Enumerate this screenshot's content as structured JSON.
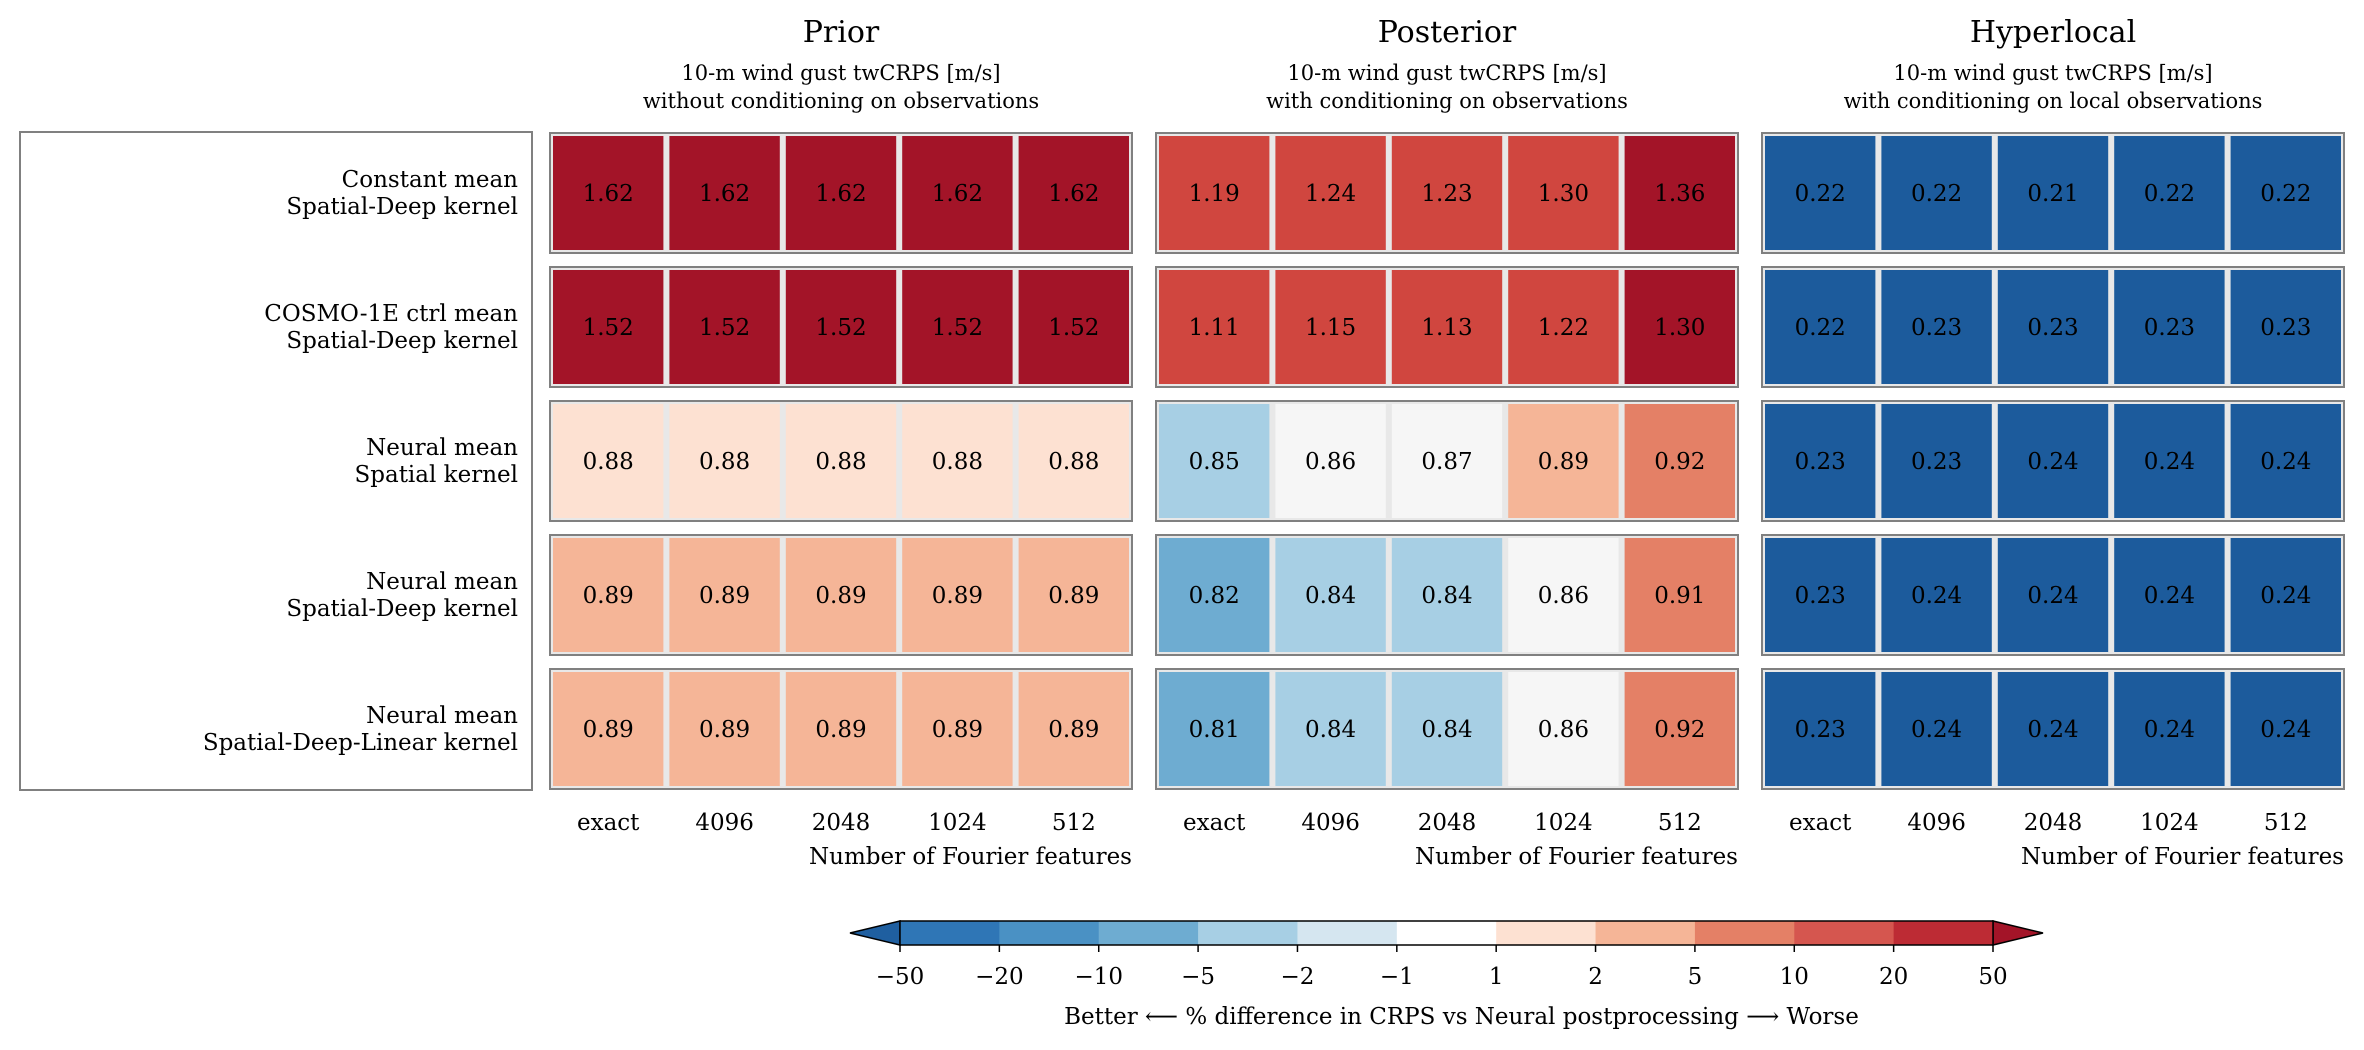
{
  "figure": {
    "xlabel": "Number of Fourier features",
    "row_labels": [
      [
        "Constant mean",
        "Spatial-Deep kernel"
      ],
      [
        "COSMO-1E ctrl mean",
        "Spatial-Deep kernel"
      ],
      [
        "Neural mean",
        "Spatial kernel"
      ],
      [
        "Neural mean",
        "Spatial-Deep kernel"
      ],
      [
        "Neural mean",
        "Spatial-Deep-Linear kernel"
      ]
    ],
    "colorbar": {
      "label": "Better ⟵ % difference in CRPS vs Neural postprocessing ⟶ Worse",
      "ticks": [
        "−50",
        "−20",
        "−10",
        "−5",
        "−2",
        "−1",
        "1",
        "2",
        "5",
        "10",
        "20",
        "50"
      ],
      "bins": [
        {
          "range": "-50 to -20",
          "color": "#2f76b6"
        },
        {
          "range": "-20 to -10",
          "color": "#4a91c4"
        },
        {
          "range": "-10 to -5",
          "color": "#6eacd1"
        },
        {
          "range": "-5 to -2",
          "color": "#a7cfe4"
        },
        {
          "range": "-2 to -1",
          "color": "#d5e6f0"
        },
        {
          "range": "-1 to 1",
          "color": "#ffffff"
        },
        {
          "range": "1 to 2",
          "color": "#fde1d2"
        },
        {
          "range": "2 to 5",
          "color": "#f5b597"
        },
        {
          "range": "5 to 10",
          "color": "#e48066"
        },
        {
          "range": "10 to 20",
          "color": "#d5564f"
        },
        {
          "range": "20 to 50",
          "color": "#bd2b34"
        }
      ],
      "extend_low_color": "#1f5fa0",
      "extend_high_color": "#a31428"
    }
  },
  "chart_data": [
    {
      "type": "heatmap",
      "title": "Prior",
      "subtitle": [
        "10-m wind gust twCRPS [m/s]",
        "without conditioning on observations"
      ],
      "xlabel": "Number of Fourier features",
      "categories": [
        "exact",
        "4096",
        "2048",
        "1024",
        "512"
      ],
      "values": [
        [
          "1.62",
          "1.62",
          "1.62",
          "1.62",
          "1.62"
        ],
        [
          "1.52",
          "1.52",
          "1.52",
          "1.52",
          "1.52"
        ],
        [
          "0.88",
          "0.88",
          "0.88",
          "0.88",
          "0.88"
        ],
        [
          "0.89",
          "0.89",
          "0.89",
          "0.89",
          "0.89"
        ],
        [
          "0.89",
          "0.89",
          "0.89",
          "0.89",
          "0.89"
        ]
      ],
      "colors": [
        [
          "#a31428",
          "#a31428",
          "#a31428",
          "#a31428",
          "#a31428"
        ],
        [
          "#a31428",
          "#a31428",
          "#a31428",
          "#a31428",
          "#a31428"
        ],
        [
          "#fde1d2",
          "#fde1d2",
          "#fde1d2",
          "#fde1d2",
          "#fde1d2"
        ],
        [
          "#f5b597",
          "#f5b597",
          "#f5b597",
          "#f5b597",
          "#f5b597"
        ],
        [
          "#f5b597",
          "#f5b597",
          "#f5b597",
          "#f5b597",
          "#f5b597"
        ]
      ]
    },
    {
      "type": "heatmap",
      "title": "Posterior",
      "subtitle": [
        "10-m wind gust twCRPS [m/s]",
        "with conditioning on observations"
      ],
      "xlabel": "Number of Fourier features",
      "categories": [
        "exact",
        "4096",
        "2048",
        "1024",
        "512"
      ],
      "values": [
        [
          "1.19",
          "1.24",
          "1.23",
          "1.30",
          "1.36"
        ],
        [
          "1.11",
          "1.15",
          "1.13",
          "1.22",
          "1.30"
        ],
        [
          "0.85",
          "0.86",
          "0.87",
          "0.89",
          "0.92"
        ],
        [
          "0.82",
          "0.84",
          "0.84",
          "0.86",
          "0.91"
        ],
        [
          "0.81",
          "0.84",
          "0.84",
          "0.86",
          "0.92"
        ]
      ],
      "colors": [
        [
          "#d0463f",
          "#d0463f",
          "#d0463f",
          "#d0463f",
          "#a31428"
        ],
        [
          "#d0463f",
          "#d0463f",
          "#d0463f",
          "#d0463f",
          "#a31428"
        ],
        [
          "#a7cfe4",
          "#f6f6f6",
          "#f6f6f6",
          "#f5b597",
          "#e48066"
        ],
        [
          "#6eacd1",
          "#a7cfe4",
          "#a7cfe4",
          "#f6f6f6",
          "#e48066"
        ],
        [
          "#6eacd1",
          "#a7cfe4",
          "#a7cfe4",
          "#f6f6f6",
          "#e48066"
        ]
      ]
    },
    {
      "type": "heatmap",
      "title": "Hyperlocal",
      "subtitle": [
        "10-m wind gust twCRPS [m/s]",
        "with conditioning on local observations"
      ],
      "xlabel": "Number of Fourier features",
      "categories": [
        "exact",
        "4096",
        "2048",
        "1024",
        "512"
      ],
      "values": [
        [
          "0.22",
          "0.22",
          "0.21",
          "0.22",
          "0.22"
        ],
        [
          "0.22",
          "0.23",
          "0.23",
          "0.23",
          "0.23"
        ],
        [
          "0.23",
          "0.23",
          "0.24",
          "0.24",
          "0.24"
        ],
        [
          "0.23",
          "0.24",
          "0.24",
          "0.24",
          "0.24"
        ],
        [
          "0.23",
          "0.24",
          "0.24",
          "0.24",
          "0.24"
        ]
      ],
      "colors": [
        [
          "#1c5b9c",
          "#1c5b9c",
          "#1c5b9c",
          "#1c5b9c",
          "#1c5b9c"
        ],
        [
          "#1c5b9c",
          "#1c5b9c",
          "#1c5b9c",
          "#1c5b9c",
          "#1c5b9c"
        ],
        [
          "#1c5b9c",
          "#1c5b9c",
          "#1c5b9c",
          "#1c5b9c",
          "#1c5b9c"
        ],
        [
          "#1c5b9c",
          "#1c5b9c",
          "#1c5b9c",
          "#1c5b9c",
          "#1c5b9c"
        ],
        [
          "#1c5b9c",
          "#1c5b9c",
          "#1c5b9c",
          "#1c5b9c",
          "#1c5b9c"
        ]
      ]
    }
  ]
}
